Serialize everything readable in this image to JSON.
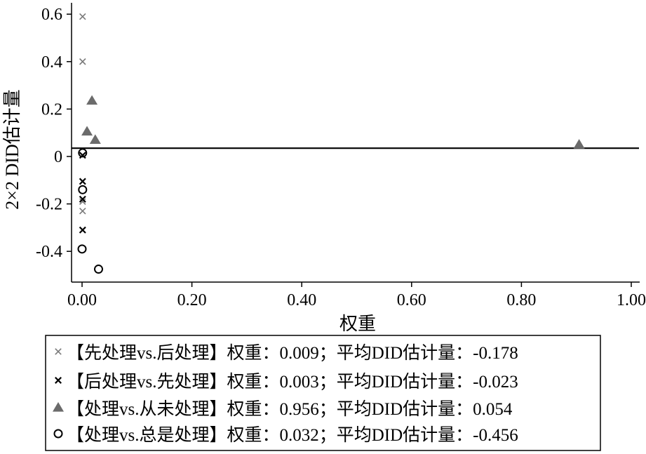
{
  "chart_data": {
    "type": "scatter",
    "xlabel": "权重",
    "ylabel": "2×2 DID估计量",
    "xlim": [
      0,
      1.0
    ],
    "ylim": [
      -0.5,
      0.62
    ],
    "x_ticks": [
      "0.00",
      "0.20",
      "0.40",
      "0.60",
      "0.80",
      "1.00"
    ],
    "x_tick_values": [
      0,
      0.2,
      0.4,
      0.6,
      0.8,
      1.0
    ],
    "y_ticks": [
      "0.6",
      "0.4",
      "0.2",
      "0",
      "-0.2",
      "-0.4"
    ],
    "y_tick_values": [
      0.6,
      0.4,
      0.2,
      0,
      -0.2,
      -0.4
    ],
    "reference_line_y": 0.035,
    "series": [
      {
        "marker": "x-light",
        "color": "#7a7a7a",
        "points": [
          [
            0.001,
            0.59
          ],
          [
            0.001,
            0.4
          ],
          [
            0.001,
            -0.23
          ],
          [
            0.001,
            -0.19
          ]
        ]
      },
      {
        "marker": "x-dark",
        "color": "#000000",
        "points": [
          [
            0.001,
            0.005
          ],
          [
            0.001,
            -0.105
          ],
          [
            0.001,
            -0.18
          ],
          [
            0.001,
            -0.31
          ]
        ]
      },
      {
        "marker": "triangle",
        "color": "#6b6b6b",
        "points": [
          [
            0.009,
            0.105
          ],
          [
            0.018,
            0.235
          ],
          [
            0.024,
            0.07
          ],
          [
            0.905,
            0.05
          ]
        ]
      },
      {
        "marker": "circle",
        "color": "#000000",
        "points": [
          [
            0.001,
            0.015
          ],
          [
            0.001,
            -0.14
          ],
          [
            0.0,
            -0.39
          ],
          [
            0.03,
            -0.475
          ]
        ]
      }
    ],
    "legend": {
      "placement": "bottom",
      "entries": [
        "【先处理vs.后处理】权重：0.009；平均DID估计量：-0.178",
        "【后处理vs.先处理】权重：0.003；平均DID估计量：-0.023",
        "【处理vs.从未处理】权重：0.956；平均DID估计量：0.054",
        "【处理vs.总是处理】权重：0.032；平均DID估计量：-0.456"
      ]
    }
  }
}
